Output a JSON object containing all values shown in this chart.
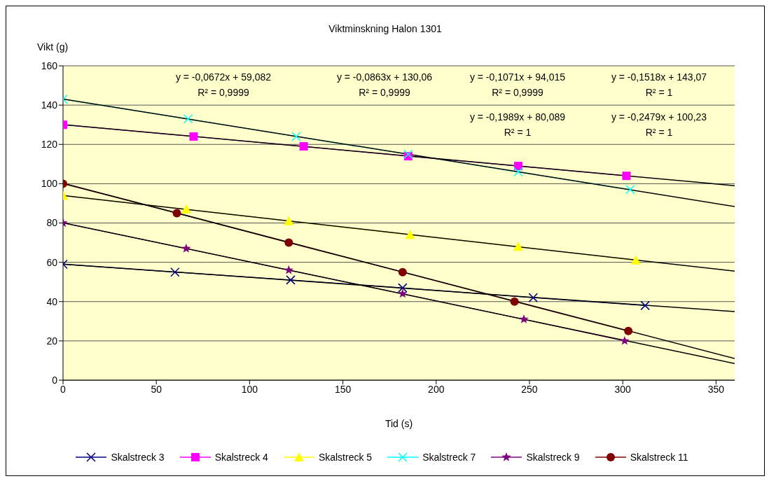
{
  "chart_data": {
    "type": "line",
    "title": "Viktminskning Halon 1301",
    "xlabel": "Tid (s)",
    "ylabel": "Vikt (g)",
    "xlim": [
      0,
      360
    ],
    "xticks": [
      0,
      50,
      100,
      150,
      200,
      250,
      300,
      350
    ],
    "ylim": [
      0,
      160
    ],
    "yticks": [
      0,
      20,
      40,
      60,
      80,
      100,
      120,
      140,
      160
    ],
    "grid": "y",
    "legend": "bottom",
    "annotations": [
      "y = -0,0672x + 59,082\nR² = 0,9999",
      "y = -0,0863x + 130,06\nR² = 0,9999",
      "y = -0,1071x + 94,015\nR² = 0,9999",
      "y = -0,1518x + 143,07\nR² = 1",
      "y = -0,1989x + 80,089\nR² = 1",
      "y = -0,2479x + 100,23\nR² = 1"
    ],
    "series": [
      {
        "name": "Skalstreck 3",
        "color": "#000080",
        "marker": "cross",
        "x": [
          0,
          60,
          122,
          182,
          252,
          312
        ],
        "values": [
          59,
          55,
          51,
          47,
          42,
          38
        ]
      },
      {
        "name": "Skalstreck 4",
        "color": "#ff00ff",
        "marker": "square",
        "x": [
          0,
          70,
          129,
          185,
          244,
          302
        ],
        "values": [
          130,
          124,
          119,
          114,
          109,
          104
        ]
      },
      {
        "name": "Skalstreck 5",
        "color": "#ffff00",
        "marker": "triangle",
        "x": [
          0,
          66,
          121,
          186,
          244,
          307
        ],
        "values": [
          94,
          87,
          81,
          74,
          68,
          61
        ]
      },
      {
        "name": "Skalstreck 7",
        "color": "#00ffff",
        "marker": "cross",
        "x": [
          0,
          67,
          125,
          185,
          244,
          304
        ],
        "values": [
          143,
          133,
          124,
          115,
          106,
          97
        ]
      },
      {
        "name": "Skalstreck 9",
        "color": "#800080",
        "marker": "star",
        "x": [
          0,
          66,
          121,
          182,
          247,
          301
        ],
        "values": [
          80,
          67,
          56,
          44,
          31,
          20
        ]
      },
      {
        "name": "Skalstreck 11",
        "color": "#800000",
        "marker": "circle",
        "x": [
          0,
          61,
          121,
          182,
          242,
          303
        ],
        "values": [
          100,
          85,
          70,
          55,
          40,
          25
        ]
      },
      {
        "type": "line",
        "color": "#000000",
        "marker": "none",
        "x": [
          0,
          360
        ],
        "values": [
          59.1,
          34.9
        ]
      },
      {
        "type": "line",
        "color": "#000000",
        "marker": "none",
        "x": [
          0,
          360
        ],
        "values": [
          130.1,
          99.0
        ]
      },
      {
        "type": "line",
        "color": "#000000",
        "marker": "none",
        "x": [
          0,
          360
        ],
        "values": [
          94.0,
          55.5
        ]
      },
      {
        "type": "line",
        "color": "#000000",
        "marker": "none",
        "x": [
          0,
          360
        ],
        "values": [
          143.1,
          88.4
        ]
      },
      {
        "type": "line",
        "color": "#000000",
        "marker": "none",
        "x": [
          0,
          360
        ],
        "values": [
          80.1,
          8.5
        ]
      },
      {
        "type": "line",
        "color": "#000000",
        "marker": "none",
        "x": [
          0,
          360
        ],
        "values": [
          100.2,
          11.0
        ]
      }
    ]
  }
}
